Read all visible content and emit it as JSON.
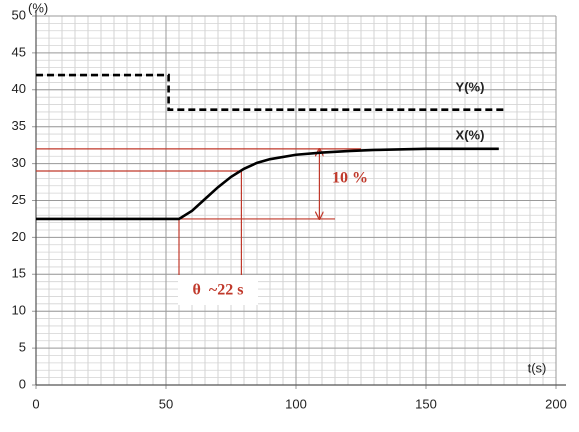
{
  "chart_data": {
    "type": "line",
    "y_label": "(%)",
    "x_label": "t(s)",
    "xlim": [
      0,
      200
    ],
    "ylim": [
      0,
      50
    ],
    "xticks": [
      0,
      50,
      100,
      150,
      200
    ],
    "yticks": [
      0,
      5,
      10,
      15,
      20,
      25,
      30,
      35,
      40,
      45,
      50
    ],
    "minor_xstep": 5,
    "minor_ystep": 1,
    "grid": true,
    "series": [
      {
        "name": "Y(%)",
        "color": "#000000",
        "dash": true,
        "x": [
          0,
          51,
          51,
          180
        ],
        "values": [
          42,
          42,
          37.3,
          37.3
        ]
      },
      {
        "name": "X(%)",
        "color": "#000000",
        "dash": false,
        "x": [
          0,
          55,
          60,
          65,
          70,
          75,
          80,
          85,
          90,
          100,
          110,
          120,
          130,
          150,
          178
        ],
        "values": [
          22.5,
          22.5,
          23.6,
          25.2,
          26.8,
          28.2,
          29.3,
          30.1,
          30.6,
          31.2,
          31.5,
          31.7,
          31.85,
          32,
          32
        ]
      }
    ],
    "guide_color": "#c0392b",
    "guides": [
      {
        "x": [
          0,
          125
        ],
        "y": [
          32,
          32
        ]
      },
      {
        "x": [
          0,
          79
        ],
        "y": [
          29,
          29
        ]
      },
      {
        "x": [
          55,
          115
        ],
        "y": [
          22.5,
          22.5
        ]
      },
      {
        "x": [
          55,
          55
        ],
        "y": [
          22.5,
          14.5
        ]
      },
      {
        "x": [
          79,
          79
        ],
        "y": [
          29,
          14.5
        ]
      }
    ],
    "arrow": {
      "x": 109,
      "y": [
        22.5,
        32
      ]
    },
    "annotations": [
      "10 %",
      "θ  ~22 s"
    ]
  }
}
